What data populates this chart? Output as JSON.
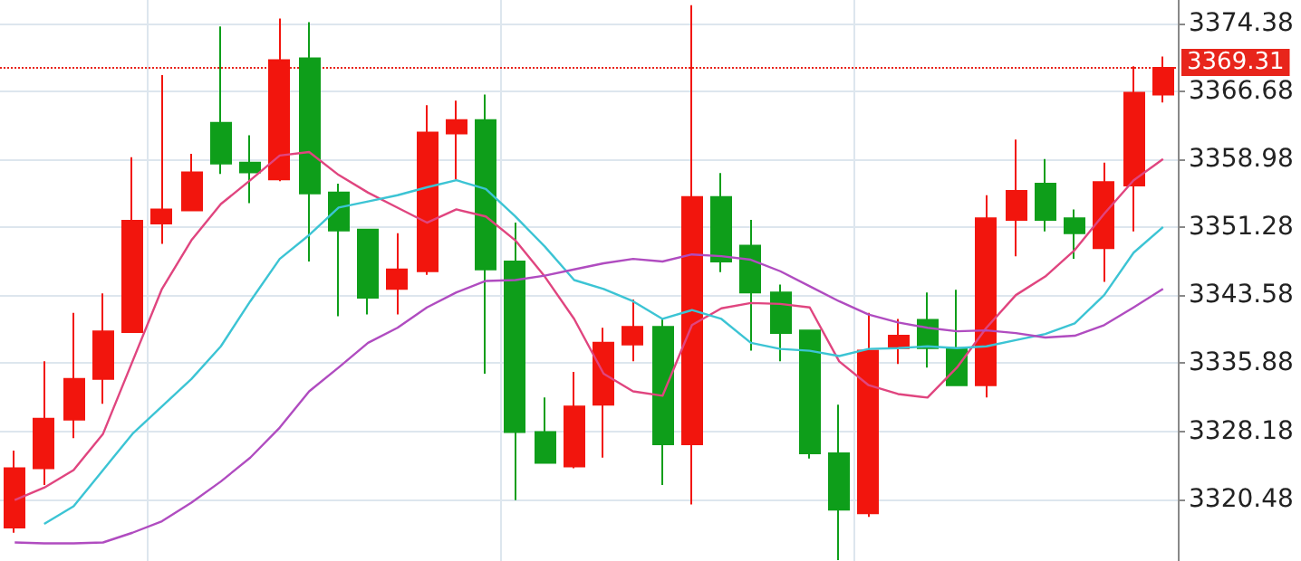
{
  "chart_data": {
    "type": "candlestick",
    "categories": [
      null,
      null,
      null,
      null,
      null,
      null,
      null,
      null,
      null,
      null,
      null,
      null,
      null,
      null,
      null,
      null,
      null,
      null,
      null,
      null,
      null,
      null,
      null,
      null,
      null,
      null,
      null,
      null,
      null,
      null,
      null,
      null,
      null,
      null,
      null,
      null,
      null,
      null,
      null,
      null
    ],
    "ohlc": [
      [
        3317.3,
        3326.0,
        3316.7,
        3324.0
      ],
      [
        3324.0,
        3336.1,
        3322.1,
        3329.6
      ],
      [
        3329.5,
        3341.6,
        3327.4,
        3334.1
      ],
      [
        3334.1,
        3343.8,
        3331.3,
        3339.5
      ],
      [
        3339.4,
        3359.2,
        3339.3,
        3352.0
      ],
      [
        3351.7,
        3368.5,
        3349.4,
        3353.3
      ],
      [
        3353.2,
        3359.6,
        3353.1,
        3357.5
      ],
      [
        3363.1,
        3374.0,
        3357.3,
        3358.5
      ],
      [
        3358.6,
        3361.7,
        3354.0,
        3357.5
      ],
      [
        3356.7,
        3374.9,
        3356.5,
        3370.2
      ],
      [
        3370.4,
        3374.5,
        3347.4,
        3355.1
      ],
      [
        3355.2,
        3356.2,
        3341.2,
        3350.9
      ],
      [
        3351.0,
        3351.1,
        3341.4,
        3343.3
      ],
      [
        3344.3,
        3350.6,
        3341.4,
        3346.5
      ],
      [
        3346.3,
        3365.1,
        3345.9,
        3362.0
      ],
      [
        3361.9,
        3365.6,
        3356.7,
        3363.4
      ],
      [
        3363.4,
        3366.3,
        3334.7,
        3346.5
      ],
      [
        3347.4,
        3351.8,
        3320.4,
        3328.1
      ],
      [
        3328.1,
        3332.0,
        3324.5,
        3324.6
      ],
      [
        3324.2,
        3334.9,
        3324.0,
        3331.0
      ],
      [
        3331.2,
        3339.9,
        3325.2,
        3338.2
      ],
      [
        3338.0,
        3343.1,
        3336.1,
        3340.0
      ],
      [
        3340.0,
        3340.9,
        3322.1,
        3326.7
      ],
      [
        3326.7,
        3376.4,
        3319.9,
        3354.7
      ],
      [
        3354.7,
        3357.4,
        3346.2,
        3347.4
      ],
      [
        3349.2,
        3352.1,
        3337.3,
        3343.9
      ],
      [
        3343.9,
        3344.8,
        3336.1,
        3339.3
      ],
      [
        3339.6,
        3339.7,
        3325.1,
        3325.7
      ],
      [
        3325.7,
        3331.2,
        3313.6,
        3319.3
      ],
      [
        3318.9,
        3341.6,
        3318.5,
        3337.3
      ],
      [
        3337.6,
        3340.9,
        3335.8,
        3339.0
      ],
      [
        3340.8,
        3343.9,
        3335.4,
        3337.6
      ],
      [
        3337.6,
        3344.2,
        3333.3,
        3333.4
      ],
      [
        3333.4,
        3354.9,
        3332.0,
        3352.3
      ],
      [
        3352.1,
        3361.2,
        3348.0,
        3355.4
      ],
      [
        3356.2,
        3359.0,
        3350.8,
        3352.1
      ],
      [
        3352.3,
        3353.3,
        3347.7,
        3350.6
      ],
      [
        3348.9,
        3358.6,
        3345.1,
        3356.4
      ],
      [
        3356.0,
        3369.5,
        3350.8,
        3366.5
      ],
      [
        3366.3,
        3370.6,
        3365.4,
        3369.31
      ]
    ],
    "colors": [
      "#f2150d",
      "#f2150d",
      "#f2150d",
      "#f2150d",
      "#f2150d",
      "#f2150d",
      "#f2150d",
      "#0e9e1a",
      "#0e9e1a",
      "#f2150d",
      "#0e9e1a",
      "#0e9e1a",
      "#0e9e1a",
      "#f2150d",
      "#f2150d",
      "#f2150d",
      "#0e9e1a",
      "#0e9e1a",
      "#0e9e1a",
      "#f2150d",
      "#f2150d",
      "#f2150d",
      "#0e9e1a",
      "#f2150d",
      "#0e9e1a",
      "#0e9e1a",
      "#0e9e1a",
      "#0e9e1a",
      "#0e9e1a",
      "#f2150d",
      "#f2150d",
      "#0e9e1a",
      "#0e9e1a",
      "#f2150d",
      "#f2150d",
      "#0e9e1a",
      "#0e9e1a",
      "#f2150d",
      "#f2150d",
      "#f2150d"
    ],
    "series": [
      {
        "type": "line",
        "color": "#e0457f",
        "values": [
          3320.4,
          3321.8,
          3323.8,
          3327.9,
          3336.1,
          3344.3,
          3349.8,
          3353.9,
          3356.6,
          3359.4,
          3359.8,
          3357.2,
          3355.2,
          3353.5,
          3351.8,
          3353.3,
          3352.5,
          3349.8,
          3345.7,
          3340.9,
          3334.7,
          3332.7,
          3332.2,
          3340.2,
          3342.1,
          3342.7,
          3342.6,
          3342.2,
          3336.1,
          3333.4,
          3332.4,
          3332.0,
          3335.4,
          3339.9,
          3343.6,
          3345.7,
          3348.7,
          3352.8,
          3356.6,
          3359.0
        ]
      },
      {
        "type": "line",
        "color": "#3cc4d4",
        "values": [
          null,
          3317.7,
          3319.7,
          3323.8,
          3327.9,
          3331.0,
          3334.1,
          3337.8,
          3342.9,
          3347.7,
          3350.4,
          3353.5,
          3354.2,
          3354.9,
          3355.8,
          3356.6,
          3355.6,
          3352.5,
          3349.1,
          3345.3,
          3344.3,
          3342.9,
          3340.9,
          3341.9,
          3340.9,
          3338.2,
          3337.5,
          3337.3,
          3336.7,
          3337.5,
          3337.6,
          3337.8,
          3337.6,
          3337.8,
          3338.5,
          3339.2,
          3340.4,
          3343.6,
          3348.4,
          3351.3
        ]
      },
      {
        "type": "line",
        "color": "#b04cc0",
        "values": [
          3315.6,
          3315.5,
          3315.5,
          3315.6,
          3316.7,
          3318.0,
          3320.1,
          3322.5,
          3325.2,
          3328.6,
          3332.7,
          3335.4,
          3338.2,
          3339.9,
          3342.2,
          3343.9,
          3345.2,
          3345.3,
          3345.8,
          3346.5,
          3347.2,
          3347.7,
          3347.4,
          3348.2,
          3348.0,
          3347.6,
          3346.3,
          3344.6,
          3342.9,
          3341.4,
          3340.5,
          3339.9,
          3339.5,
          3339.6,
          3339.3,
          3338.8,
          3339.0,
          3340.2,
          3342.2,
          3344.3
        ]
      }
    ],
    "ylim": [
      3313.5,
      3377.0
    ],
    "yticks": [
      3320.48,
      3328.18,
      3335.88,
      3343.58,
      3351.28,
      3358.98,
      3366.68,
      3374.38
    ],
    "ref_lines": [
      {
        "axis": "y",
        "value": 3369.31,
        "label": "3369.31",
        "color": "#e8251b",
        "line_style": "dotted"
      }
    ],
    "grid": true,
    "tick_labels": "y"
  }
}
